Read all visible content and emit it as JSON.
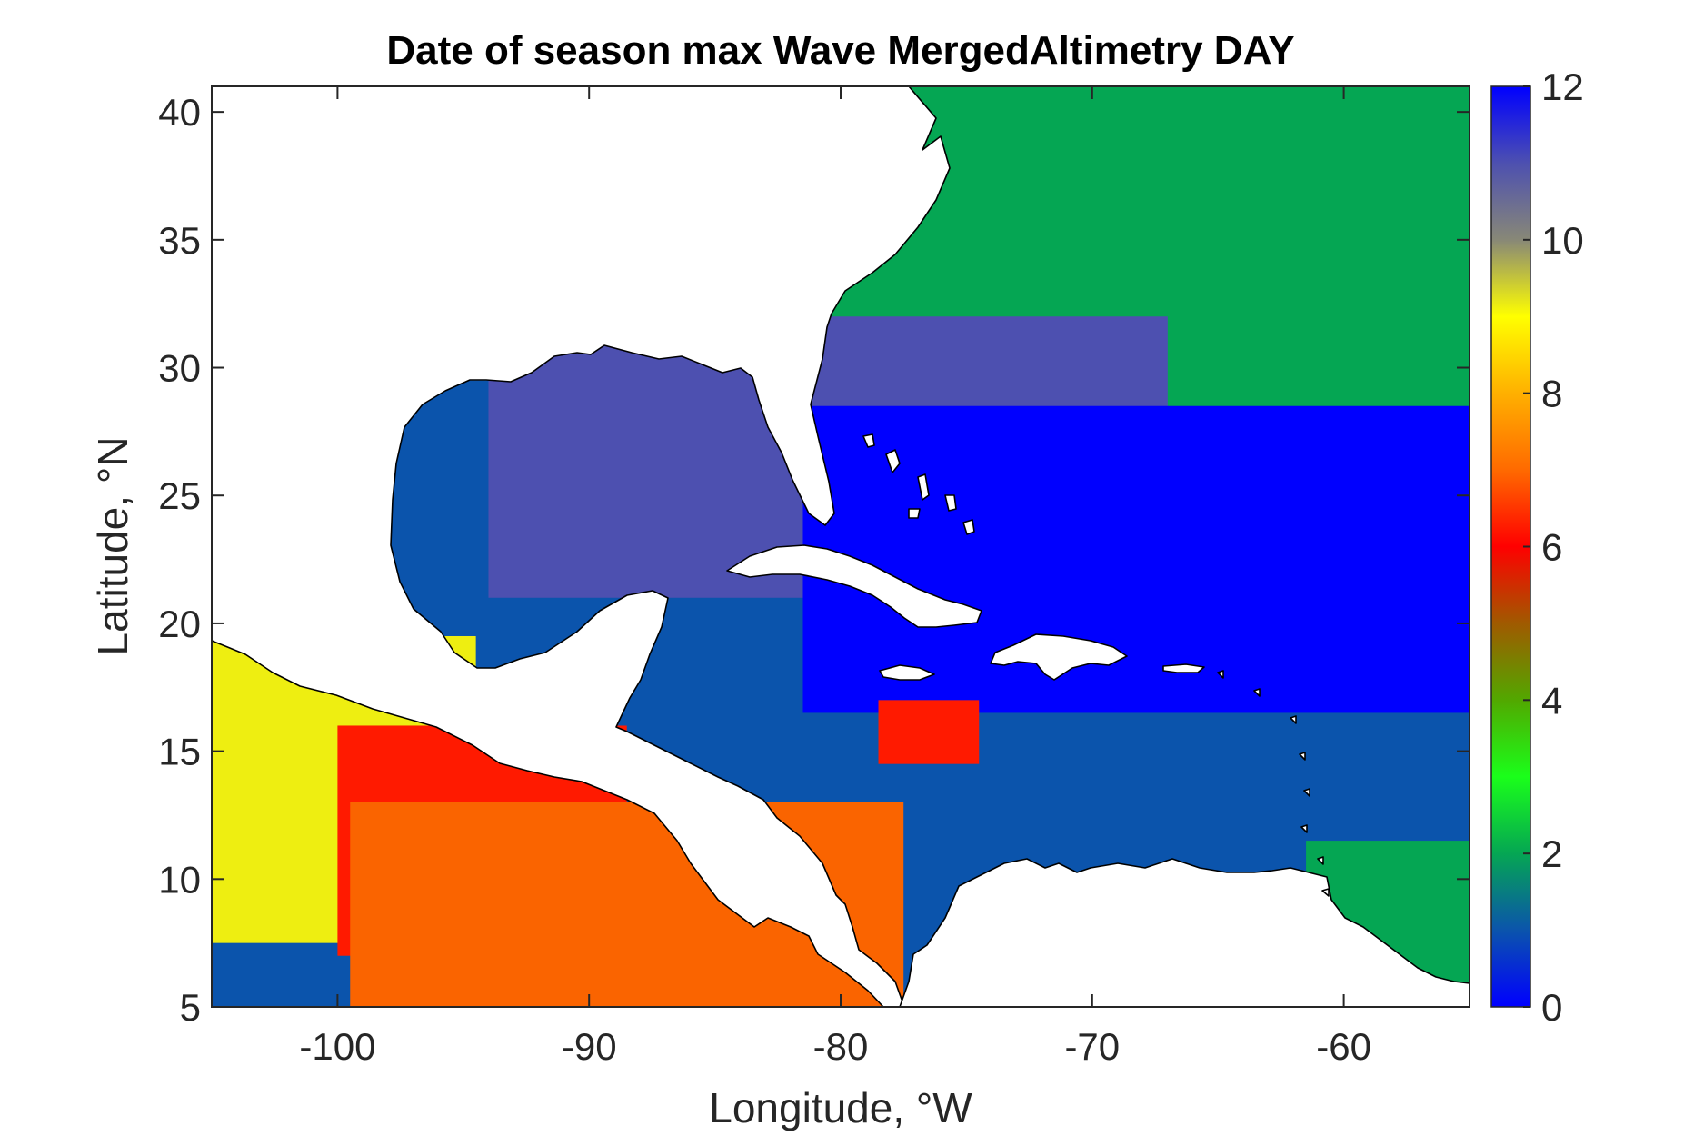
{
  "title": "Date of season max Wave MergedAltimetry DAY",
  "axes": {
    "xlabel": "Longitude, °W",
    "ylabel": "Latitude, °N",
    "xlim": [
      -105,
      -55
    ],
    "ylim": [
      5,
      41
    ],
    "xticks": [
      -100,
      -90,
      -80,
      -70,
      -60
    ],
    "yticks": [
      5,
      10,
      15,
      20,
      25,
      30,
      35,
      40
    ],
    "xtick_labels": [
      "-100",
      "-90",
      "-80",
      "-70",
      "-60"
    ],
    "ytick_labels": [
      "5",
      "10",
      "15",
      "20",
      "25",
      "30",
      "35",
      "40"
    ]
  },
  "colorbar": {
    "range": [
      0,
      12
    ],
    "ticks": [
      0,
      2,
      4,
      6,
      8,
      10,
      12
    ],
    "tick_labels": [
      "0",
      "2",
      "4",
      "6",
      "8",
      "10",
      "12"
    ],
    "stops": [
      {
        "v": 0,
        "color": "#0000ff"
      },
      {
        "v": 1,
        "color": "#0b54ac"
      },
      {
        "v": 2,
        "color": "#05a653"
      },
      {
        "v": 3,
        "color": "#1aff1a"
      },
      {
        "v": 4,
        "color": "#52a800"
      },
      {
        "v": 5,
        "color": "#a05a00"
      },
      {
        "v": 6,
        "color": "#ff0000"
      },
      {
        "v": 7,
        "color": "#ff6a00"
      },
      {
        "v": 8,
        "color": "#ffb000"
      },
      {
        "v": 9,
        "color": "#ffff00"
      },
      {
        "v": 10,
        "color": "#888877"
      },
      {
        "v": 11,
        "color": "#4d50b0"
      },
      {
        "v": 12,
        "color": "#0000ff"
      }
    ]
  },
  "chart_data": {
    "type": "heatmap",
    "x_unit": "degrees longitude",
    "y_unit": "degrees latitude",
    "categories_note": "",
    "regions": [
      {
        "value": 1.0,
        "color": "#0b54ac",
        "lon": [
          -105,
          -55
        ],
        "lat": [
          5,
          29.5
        ]
      },
      {
        "value": 2.0,
        "color": "#05a653",
        "lon": [
          -81,
          -55
        ],
        "lat": [
          26,
          41
        ]
      },
      {
        "value": 11.0,
        "color": "#4d50b0",
        "lon": [
          -94,
          -67
        ],
        "lat": [
          21,
          32
        ]
      },
      {
        "value": 12.0,
        "color": "#0000ff",
        "lon": [
          -81.5,
          -55
        ],
        "lat": [
          16.5,
          28.5
        ]
      },
      {
        "value": 9.0,
        "color": "#eeee11",
        "lon": [
          -105,
          -94.5
        ],
        "lat": [
          7.5,
          19.5
        ]
      },
      {
        "value": 6.0,
        "color": "#ff1a00",
        "lon": [
          -100,
          -88.5
        ],
        "lat": [
          7,
          16
        ]
      },
      {
        "value": 7.0,
        "color": "#fa6400",
        "lon": [
          -99.5,
          -77.5
        ],
        "lat": [
          5,
          13
        ]
      },
      {
        "value": 6.0,
        "color": "#ff1a00",
        "lon": [
          -78.5,
          -74.5
        ],
        "lat": [
          14.5,
          17
        ]
      },
      {
        "value": 2.0,
        "color": "#05a653",
        "lon": [
          -61.5,
          -55
        ],
        "lat": [
          5,
          11.5
        ]
      }
    ]
  }
}
